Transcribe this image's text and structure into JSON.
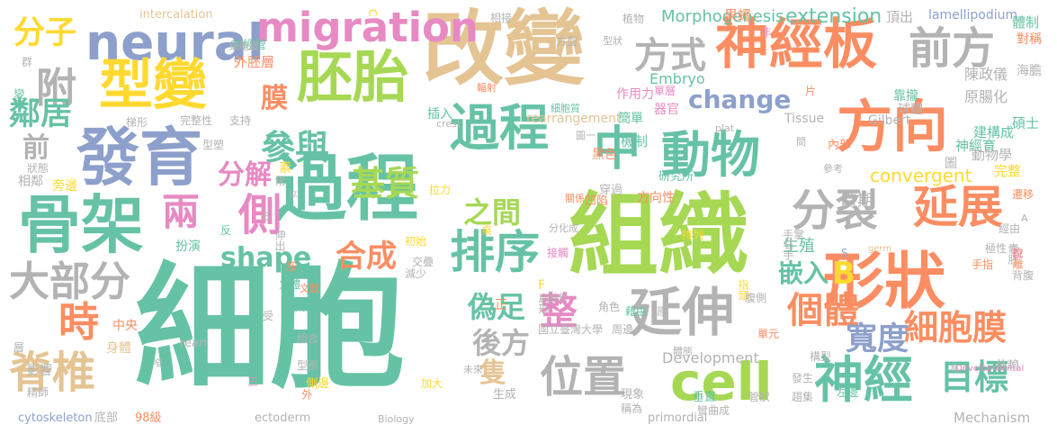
{
  "cloud": {
    "colors": {
      "green": "#66c2a5",
      "orange": "#fc8d62",
      "blue": "#8da0cb",
      "pink": "#e78ac3",
      "lime": "#a6d854",
      "yellow": "#ffd92f",
      "tan": "#e5c494",
      "gray": "#b3b3b3"
    },
    "words": [
      {
        "text": "細胞",
        "color": "#66c2a5"
      },
      {
        "text": "改變",
        "color": "#e5c494"
      },
      {
        "text": "組織",
        "color": "#a6d854"
      },
      {
        "text": "過程",
        "color": "#66c2a5"
      },
      {
        "text": "形狀",
        "color": "#fc8d62"
      },
      {
        "text": "cell",
        "color": "#a6d854"
      },
      {
        "text": "發育",
        "color": "#8da0cb"
      },
      {
        "text": "骨架",
        "color": "#66c2a5"
      },
      {
        "text": "胚胎",
        "color": "#a6d854"
      },
      {
        "text": "方向",
        "color": "#fc8d62"
      },
      {
        "text": "神經板",
        "color": "#fc8d62"
      },
      {
        "text": "neural",
        "color": "#8da0cb"
      },
      {
        "text": "型變",
        "color": "#ffd92f"
      },
      {
        "text": "過程",
        "color": "#66c2a5"
      },
      {
        "text": "動物",
        "color": "#66c2a5"
      },
      {
        "text": "中",
        "color": "#66c2a5"
      },
      {
        "text": "migration",
        "color": "#e78ac3"
      },
      {
        "text": "前方",
        "color": "#b3b3b3"
      },
      {
        "text": "方式",
        "color": "#b3b3b3"
      },
      {
        "text": "神經",
        "color": "#66c2a5"
      },
      {
        "text": "延伸",
        "color": "#b3b3b3"
      },
      {
        "text": "位置",
        "color": "#b3b3b3"
      },
      {
        "text": "延展",
        "color": "#fc8d62"
      },
      {
        "text": "分裂",
        "color": "#b3b3b3"
      },
      {
        "text": "排序",
        "color": "#66c2a5"
      },
      {
        "text": "側",
        "color": "#e78ac3"
      },
      {
        "text": "兩",
        "color": "#e78ac3"
      },
      {
        "text": "參與",
        "color": "#66c2a5"
      },
      {
        "text": "基質",
        "color": "#a6d854"
      },
      {
        "text": "附",
        "color": "#b3b3b3"
      },
      {
        "text": "大部分",
        "color": "#b3b3b3"
      },
      {
        "text": "脊椎",
        "color": "#e5c494"
      },
      {
        "text": "個體",
        "color": "#fc8d62"
      },
      {
        "text": "整",
        "color": "#e78ac3"
      },
      {
        "text": "細胞膜",
        "color": "#fc8d62"
      },
      {
        "text": "寬度",
        "color": "#8da0cb"
      },
      {
        "text": "目標",
        "color": "#66c2a5"
      },
      {
        "text": "時",
        "color": "#fc8d62"
      },
      {
        "text": "change",
        "color": "#8da0cb"
      },
      {
        "text": "shape",
        "color": "#66c2a5"
      },
      {
        "text": "合成",
        "color": "#fc8d62"
      },
      {
        "text": "分解",
        "color": "#e78ac3"
      },
      {
        "text": "之間",
        "color": "#a6d854"
      },
      {
        "text": "偽足",
        "color": "#66c2a5"
      },
      {
        "text": "後方",
        "color": "#b3b3b3"
      },
      {
        "text": "隻",
        "color": "#e5c494"
      },
      {
        "text": "嵌入",
        "color": "#66c2a5"
      },
      {
        "text": "B",
        "color": "#ffd92f"
      },
      {
        "text": "分子",
        "color": "#ffd92f"
      },
      {
        "text": "鄰居",
        "color": "#66c2a5"
      },
      {
        "text": "前",
        "color": "#b3b3b3"
      },
      {
        "text": "膜",
        "color": "#fc8d62"
      },
      {
        "text": "extension",
        "color": "#66c2a5"
      },
      {
        "text": "convergent",
        "color": "#ffd92f"
      },
      {
        "text": "Morphogenesis",
        "color": "#66c2a5"
      },
      {
        "text": "Embryo",
        "color": "#66c2a5"
      },
      {
        "text": "lamellipodium",
        "color": "#8da0cb"
      },
      {
        "text": "intercalation",
        "color": "#e5c494"
      },
      {
        "text": "rearrangement",
        "color": "#e5c494"
      },
      {
        "text": "Development",
        "color": "#b3b3b3"
      },
      {
        "text": "Mechanism",
        "color": "#b3b3b3"
      },
      {
        "text": "cytoskeleton",
        "color": "#8da0cb"
      },
      {
        "text": "primordial",
        "color": "#b3b3b3"
      },
      {
        "text": "ectoderm",
        "color": "#b3b3b3"
      },
      {
        "text": "Tissue",
        "color": "#b3b3b3"
      },
      {
        "text": "Gilbert",
        "color": "#b3b3b3"
      },
      {
        "text": "Biology",
        "color": "#b3b3b3"
      },
      {
        "text": "Developmental",
        "color": "#e78ac3"
      },
      {
        "text": "crest",
        "color": "#b3b3b3"
      },
      {
        "text": "plat",
        "color": "#b3b3b3"
      },
      {
        "text": "germ",
        "color": "#e5c494"
      },
      {
        "text": "rearr",
        "color": "#b3b3b3"
      },
      {
        "text": "生殖",
        "color": "#66c2a5"
      },
      {
        "text": "時期",
        "color": "#b3b3b3"
      },
      {
        "text": "原腸化",
        "color": "#b3b3b3"
      },
      {
        "text": "陳政儀",
        "color": "#b3b3b3"
      },
      {
        "text": "碩士",
        "color": "#66c2a5"
      },
      {
        "text": "建構成",
        "color": "#66c2a5"
      },
      {
        "text": "神經育",
        "color": "#66c2a5"
      },
      {
        "text": "動物學",
        "color": "#b3b3b3"
      },
      {
        "text": "完整",
        "color": "#ffd92f"
      },
      {
        "text": "果蠅",
        "color": "#fc8d62"
      },
      {
        "text": "頂出",
        "color": "#b3b3b3"
      },
      {
        "text": "體制",
        "color": "#66c2a5"
      },
      {
        "text": "外胚層",
        "color": "#fc8d62"
      },
      {
        "text": "神經管",
        "color": "#66c2a5"
      },
      {
        "text": "細胞層",
        "color": "#b3b3b3"
      },
      {
        "text": "方型",
        "color": "#b3b3b3"
      },
      {
        "text": "作用力",
        "color": "#e78ac3"
      },
      {
        "text": "單層",
        "color": "#e78ac3"
      },
      {
        "text": "簡單",
        "color": "#66c2a5"
      },
      {
        "text": "器官",
        "color": "#e78ac3"
      },
      {
        "text": "機制",
        "color": "#66c2a5"
      },
      {
        "text": "研究所",
        "color": "#66c2a5"
      },
      {
        "text": "方向性",
        "color": "#fc8d62"
      },
      {
        "text": "凹陷",
        "color": "#fc8d62"
      },
      {
        "text": "黑色",
        "color": "#fc8d62"
      },
      {
        "text": "穿過",
        "color": "#b3b3b3"
      },
      {
        "text": "關係",
        "color": "#fc8d62"
      },
      {
        "text": "拉力",
        "color": "#ffd92f"
      },
      {
        "text": "插入",
        "color": "#66c2a5"
      },
      {
        "text": "支持",
        "color": "#b3b3b3"
      },
      {
        "text": "完整性",
        "color": "#b3b3b3"
      },
      {
        "text": "梯形",
        "color": "#b3b3b3"
      },
      {
        "text": "變形",
        "color": "#66c2a5"
      },
      {
        "text": "群",
        "color": "#b3b3b3"
      },
      {
        "text": "狀態",
        "color": "#b3b3b3"
      },
      {
        "text": "相鄰",
        "color": "#b3b3b3"
      },
      {
        "text": "旁邊",
        "color": "#ffd92f"
      },
      {
        "text": "素",
        "color": "#ffd92f"
      },
      {
        "text": "常",
        "color": "#b3b3b3"
      },
      {
        "text": "扮演",
        "color": "#66c2a5"
      },
      {
        "text": "反",
        "color": "#66c2a5"
      },
      {
        "text": "伸出",
        "color": "#b3b3b3"
      },
      {
        "text": "初始",
        "color": "#ffd92f"
      },
      {
        "text": "交疊",
        "color": "#b3b3b3"
      },
      {
        "text": "減少",
        "color": "#b3b3b3"
      },
      {
        "text": "桌",
        "color": "#ffd92f"
      },
      {
        "text": "分化成",
        "color": "#b3b3b3"
      },
      {
        "text": "接觸",
        "color": "#e78ac3"
      },
      {
        "text": "排列",
        "color": "#ffd92f"
      },
      {
        "text": "指頭",
        "color": "#ffd92f"
      },
      {
        "text": "國立臺灣大學",
        "color": "#b3b3b3"
      },
      {
        "text": "周邊",
        "color": "#b3b3b3"
      },
      {
        "text": "角色",
        "color": "#b3b3b3"
      },
      {
        "text": "扁形",
        "color": "#b3b3b3"
      },
      {
        "text": "中央",
        "color": "#fc8d62"
      },
      {
        "text": "身體",
        "color": "#e5c494"
      },
      {
        "text": "影響",
        "color": "#b3b3b3"
      },
      {
        "text": "精師",
        "color": "#b3b3b3"
      },
      {
        "text": "立體",
        "color": "#66c2a5"
      },
      {
        "text": "文獻",
        "color": "#fc8d62"
      },
      {
        "text": "持續",
        "color": "#66c2a5"
      },
      {
        "text": "組合",
        "color": "#b3b3b3"
      },
      {
        "text": "型態",
        "color": "#b3b3b3"
      },
      {
        "text": "側邊",
        "color": "#ffd92f"
      },
      {
        "text": "外",
        "color": "#fc8d62"
      },
      {
        "text": "底部",
        "color": "#b3b3b3"
      },
      {
        "text": "98級",
        "color": "#fc8d62"
      },
      {
        "text": "生成",
        "color": "#b3b3b3"
      },
      {
        "text": "加大",
        "color": "#ffd92f"
      },
      {
        "text": "現象",
        "color": "#b3b3b3"
      },
      {
        "text": "垂直",
        "color": "#66c2a5"
      },
      {
        "text": "稱為",
        "color": "#b3b3b3"
      },
      {
        "text": "彎曲成",
        "color": "#b3b3b3"
      },
      {
        "text": "管狀",
        "color": "#b3b3b3"
      },
      {
        "text": "趨集",
        "color": "#b3b3b3"
      },
      {
        "text": "左邊",
        "color": "#66c2a5"
      },
      {
        "text": "發生",
        "color": "#b3b3b3"
      },
      {
        "text": "構型",
        "color": "#b3b3b3"
      },
      {
        "text": "極",
        "color": "#b3b3b3"
      },
      {
        "text": "依賴",
        "color": "#b3b3b3"
      },
      {
        "text": "囊胚",
        "color": "#b3b3b3"
      },
      {
        "text": "背腹",
        "color": "#b3b3b3"
      },
      {
        "text": "脫離",
        "color": "#fc8d62"
      },
      {
        "text": "遷移",
        "color": "#fc8d62"
      },
      {
        "text": "手指",
        "color": "#fc8d62"
      },
      {
        "text": "極性",
        "color": "#b3b3b3"
      },
      {
        "text": "經由",
        "color": "#b3b3b3"
      },
      {
        "text": "手掌",
        "color": "#b3b3b3"
      },
      {
        "text": "右手",
        "color": "#b3b3b3"
      },
      {
        "text": "腹側",
        "color": "#b3b3b3"
      },
      {
        "text": "單元",
        "color": "#fc8d62"
      },
      {
        "text": "體態",
        "color": "#b3b3b3"
      },
      {
        "text": "相接",
        "color": "#b3b3b3"
      },
      {
        "text": "植物",
        "color": "#b3b3b3"
      },
      {
        "text": "型狀",
        "color": "#b3b3b3"
      },
      {
        "text": "靠攏",
        "color": "#66c2a5"
      },
      {
        "text": "球體",
        "color": "#b3b3b3"
      },
      {
        "text": "對稱",
        "color": "#fc8d62"
      },
      {
        "text": "海膽",
        "color": "#b3b3b3"
      },
      {
        "text": "輻射",
        "color": "#fc8d62"
      },
      {
        "text": "細胞質",
        "color": "#66c2a5"
      },
      {
        "text": "內部",
        "color": "#fc8d62"
      },
      {
        "text": "參考",
        "color": "#b3b3b3"
      },
      {
        "text": "圖一",
        "color": "#b3b3b3"
      },
      {
        "text": "型塑",
        "color": "#b3b3b3"
      },
      {
        "text": "片",
        "color": "#fc8d62"
      },
      {
        "text": "非",
        "color": "#e78ac3"
      },
      {
        "text": "間",
        "color": "#b3b3b3"
      },
      {
        "text": "圖",
        "color": "#b3b3b3"
      },
      {
        "text": "A",
        "color": "#b3b3b3"
      },
      {
        "text": "C",
        "color": "#ffd92f"
      },
      {
        "text": "S",
        "color": "#8da0cb"
      },
      {
        "text": "F",
        "color": "#ffd92f"
      },
      {
        "text": "拉",
        "color": "#e78ac3"
      },
      {
        "text": "窄",
        "color": "#b3b3b3"
      },
      {
        "text": "平",
        "color": "#b3b3b3"
      },
      {
        "text": "受",
        "color": "#b3b3b3"
      },
      {
        "text": "三",
        "color": "#e78ac3"
      },
      {
        "text": "五",
        "color": "#b3b3b3"
      },
      {
        "text": "正",
        "color": "#fc8d62"
      },
      {
        "text": "原",
        "color": "#b3b3b3"
      },
      {
        "text": "未來",
        "color": "#b3b3b3"
      },
      {
        "text": "放於",
        "color": "#b3b3b3"
      },
      {
        "text": "藉由",
        "color": "#66c2a5"
      },
      {
        "text": "層",
        "color": "#b3b3b3"
      },
      {
        "text": "胺",
        "color": "#fc8d62"
      }
    ]
  }
}
